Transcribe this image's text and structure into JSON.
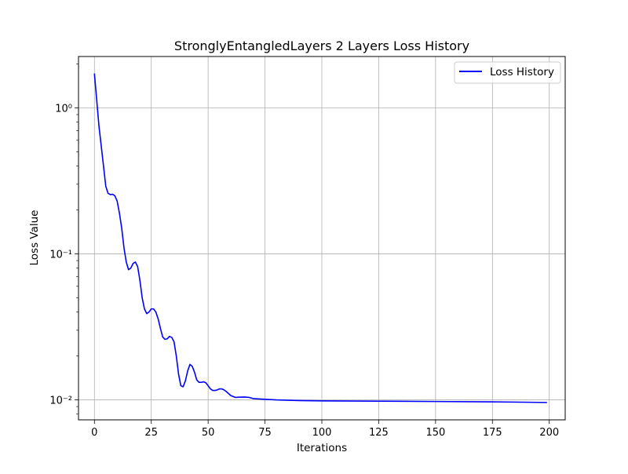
{
  "chart_data": {
    "type": "line",
    "title": "StronglyEntangledLayers 2 Layers Loss History",
    "xlabel": "Iterations",
    "ylabel": "Loss Value",
    "xlim": [
      -7,
      207
    ],
    "ylim": [
      0.0073,
      2.25
    ],
    "yscale": "log",
    "grid": true,
    "legend_position": "top-right",
    "x_ticks": [
      0,
      25,
      50,
      75,
      100,
      125,
      150,
      175,
      200
    ],
    "x_tick_labels": [
      "0",
      "25",
      "50",
      "75",
      "100",
      "125",
      "150",
      "175",
      "200"
    ],
    "y_ticks": [
      0.01,
      0.1,
      1
    ],
    "y_tick_labels": [
      "10⁻²",
      "10⁻¹",
      "10⁰"
    ],
    "colors": {
      "series": "#0000ff",
      "grid": "#b0b0b0",
      "axes": "#000000",
      "legend_border": "#cccccc"
    },
    "series": [
      {
        "name": "Loss History",
        "x": [
          0,
          2,
          4,
          5,
          6,
          7,
          8,
          9,
          10,
          11,
          12,
          13,
          14,
          15,
          16,
          17,
          18,
          19,
          20,
          21,
          22,
          23,
          24,
          25,
          26,
          27,
          28,
          29,
          30,
          31,
          32,
          33,
          34,
          35,
          36,
          37,
          38,
          39,
          40,
          41,
          42,
          43,
          44,
          45,
          46,
          47,
          48,
          49,
          50,
          51,
          52,
          53,
          54,
          55,
          56,
          57,
          58,
          60,
          62,
          64,
          66,
          68,
          70,
          75,
          80,
          90,
          100,
          125,
          150,
          175,
          199
        ],
        "y": [
          1.72,
          0.75,
          0.4,
          0.29,
          0.26,
          0.255,
          0.256,
          0.25,
          0.23,
          0.19,
          0.15,
          0.11,
          0.088,
          0.078,
          0.08,
          0.086,
          0.088,
          0.082,
          0.066,
          0.05,
          0.042,
          0.039,
          0.04,
          0.042,
          0.042,
          0.04,
          0.036,
          0.031,
          0.027,
          0.026,
          0.0262,
          0.0272,
          0.0268,
          0.025,
          0.02,
          0.015,
          0.0125,
          0.0123,
          0.0135,
          0.0158,
          0.0175,
          0.017,
          0.0155,
          0.0137,
          0.0132,
          0.0132,
          0.0133,
          0.0131,
          0.0125,
          0.0119,
          0.0116,
          0.0116,
          0.0117,
          0.0119,
          0.0119,
          0.0117,
          0.0114,
          0.0107,
          0.0104,
          0.01045,
          0.01046,
          0.0104,
          0.0102,
          0.0101,
          0.01,
          0.0099,
          0.00985,
          0.0098,
          0.00975,
          0.0097,
          0.0096
        ]
      }
    ]
  }
}
